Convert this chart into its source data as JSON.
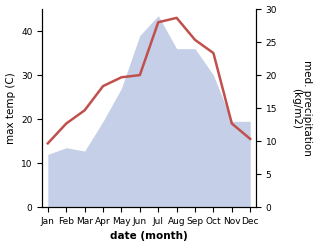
{
  "months": [
    "Jan",
    "Feb",
    "Mar",
    "Apr",
    "May",
    "Jun",
    "Jul",
    "Aug",
    "Sep",
    "Oct",
    "Nov",
    "Dec"
  ],
  "temperature": [
    14.5,
    19.0,
    22.0,
    27.5,
    29.5,
    30.0,
    42.0,
    43.0,
    38.0,
    35.0,
    19.0,
    15.5
  ],
  "precipitation": [
    8.0,
    9.0,
    8.5,
    13.0,
    18.0,
    26.0,
    29.0,
    24.0,
    24.0,
    20.0,
    13.0,
    13.0
  ],
  "temp_color": "#c0504d",
  "precip_color": "#c5cfe8",
  "left_ylabel": "max temp (C)",
  "right_ylabel": "med. precipitation\n(kg/m2)",
  "xlabel": "date (month)",
  "ylim_left": [
    0,
    45
  ],
  "ylim_right": [
    0,
    30
  ],
  "left_yticks": [
    0,
    10,
    20,
    30,
    40
  ],
  "right_yticks": [
    0,
    5,
    10,
    15,
    20,
    25,
    30
  ],
  "scale_factor": 1.5,
  "background_color": "#ffffff",
  "label_fontsize": 7.5,
  "tick_fontsize": 6.5
}
